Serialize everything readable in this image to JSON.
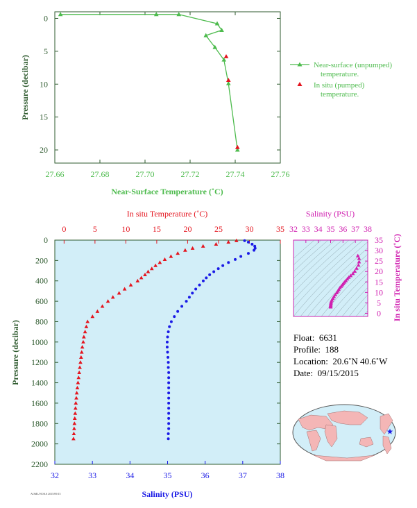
{
  "colors": {
    "green": "#4dbb4d",
    "red": "#e4141e",
    "blue": "#1a1ae6",
    "magenta": "#d020b0",
    "axis_dark": "#2e5a2e",
    "plot_bg": "#d2eef8",
    "land": "#f4b6b6",
    "ocean": "#d2eef8"
  },
  "chart_data": [
    {
      "type": "line",
      "xlabel": "Near-Surface Temperature (˚C)",
      "ylabel": "Pressure (decibar)",
      "xlim": [
        27.66,
        27.76
      ],
      "ylim": [
        22,
        -1
      ],
      "x_ticks": [
        "27.66",
        "27.68",
        "27.70",
        "27.72",
        "27.74",
        "27.76"
      ],
      "y_ticks": [
        "0",
        "5",
        "10",
        "15",
        "20"
      ],
      "legend": [
        {
          "label": "Near-surface (unpumped) temperature.",
          "color": "green",
          "marker": "triangle-line"
        },
        {
          "label": "In situ (pumped) temperature.",
          "color": "red",
          "marker": "triangle"
        }
      ],
      "series": [
        {
          "name": "Near-surface (unpumped) temperature.",
          "x": [
            27.6625,
            27.705,
            27.715,
            27.732,
            27.734,
            27.727,
            27.731,
            27.735,
            27.737,
            27.741
          ],
          "y": [
            -0.6,
            -0.6,
            -0.6,
            0.8,
            1.8,
            2.6,
            4.4,
            6.3,
            9.9,
            20.0
          ]
        },
        {
          "name": "In situ (pumped) temperature.",
          "x": [
            27.736,
            27.737,
            27.741
          ],
          "y": [
            5.8,
            9.4,
            19.6
          ]
        }
      ]
    },
    {
      "type": "scatter",
      "top_xlabel": "In situ Temperature (˚C)",
      "bottom_xlabel": "Salinity (PSU)",
      "ylabel": "Pressure (decibar)",
      "temp_lim": [
        -1.5,
        35
      ],
      "sal_lim": [
        32,
        38
      ],
      "ylim": [
        2200,
        0
      ],
      "temp_ticks": [
        "0",
        "5",
        "10",
        "15",
        "20",
        "25",
        "30",
        "35"
      ],
      "sal_ticks": [
        "32",
        "33",
        "34",
        "35",
        "36",
        "37",
        "38"
      ],
      "y_ticks": [
        "0",
        "200",
        "400",
        "600",
        "800",
        "1000",
        "1200",
        "1400",
        "1600",
        "1800",
        "2000",
        "2200"
      ],
      "series": [
        {
          "name": "In situ Temperature (˚C)",
          "pressure": [
            5,
            20,
            40,
            60,
            80,
            100,
            130,
            160,
            190,
            220,
            250,
            280,
            310,
            340,
            370,
            400,
            440,
            480,
            520,
            560,
            600,
            650,
            700,
            750,
            800,
            850,
            900,
            950,
            1000,
            1050,
            1100,
            1150,
            1200,
            1250,
            1300,
            1350,
            1400,
            1450,
            1500,
            1550,
            1600,
            1650,
            1700,
            1750,
            1800,
            1850,
            1900,
            1950
          ],
          "temp": [
            27.9,
            26.6,
            24.6,
            22.5,
            20.8,
            19.6,
            18.4,
            17.3,
            16.3,
            15.5,
            14.8,
            14.2,
            13.6,
            13.1,
            12.5,
            11.9,
            10.8,
            9.8,
            8.9,
            7.9,
            7.1,
            6.2,
            5.4,
            4.6,
            3.8,
            3.6,
            3.4,
            3.2,
            3.1,
            2.95,
            2.85,
            2.75,
            2.65,
            2.55,
            2.45,
            2.35,
            2.25,
            2.15,
            2.05,
            1.98,
            1.9,
            1.85,
            1.8,
            1.73,
            1.68,
            1.63,
            1.58,
            1.52
          ]
        },
        {
          "name": "Salinity (PSU)",
          "pressure": [
            5,
            20,
            40,
            60,
            80,
            100,
            130,
            160,
            190,
            220,
            250,
            280,
            310,
            340,
            370,
            400,
            440,
            480,
            520,
            560,
            600,
            650,
            700,
            750,
            800,
            850,
            900,
            950,
            1000,
            1050,
            1100,
            1150,
            1200,
            1250,
            1300,
            1350,
            1400,
            1450,
            1500,
            1550,
            1600,
            1650,
            1700,
            1750,
            1800,
            1850,
            1900,
            1950
          ],
          "sal": [
            37.05,
            37.15,
            37.25,
            37.32,
            37.33,
            37.3,
            37.15,
            36.95,
            36.8,
            36.62,
            36.47,
            36.35,
            36.23,
            36.12,
            36.03,
            35.95,
            35.85,
            35.75,
            35.66,
            35.58,
            35.5,
            35.38,
            35.27,
            35.18,
            35.1,
            35.05,
            35.02,
            35.0,
            34.99,
            34.99,
            35.0,
            35.01,
            35.02,
            35.02,
            35.03,
            35.03,
            35.03,
            35.03,
            35.03,
            35.03,
            35.03,
            35.03,
            35.03,
            35.03,
            35.03,
            35.03,
            35.02,
            35.02
          ]
        }
      ]
    },
    {
      "type": "scatter",
      "xlabel": "Salinity (PSU)",
      "ylabel": "In situ Temperature (˚C)",
      "xlim": [
        32,
        38
      ],
      "ylim": [
        -1.5,
        35
      ],
      "x_ticks": [
        "32",
        "33",
        "34",
        "35",
        "36",
        "37",
        "38"
      ],
      "y_ticks": [
        "0",
        "5",
        "10",
        "15",
        "20",
        "25",
        "30",
        "35"
      ],
      "series": [
        {
          "name": "Salinity (PSU)",
          "x": [
            35.0,
            35.0,
            35.0,
            35.01,
            35.02,
            35.03,
            35.05,
            35.1,
            35.18,
            35.27,
            35.38,
            35.5,
            35.58,
            35.66,
            35.75,
            35.85,
            35.95,
            36.03,
            36.12,
            36.23,
            36.35,
            36.47,
            36.62,
            36.8,
            36.95,
            37.1,
            37.25,
            37.3,
            37.3,
            37.2
          ],
          "y": [
            3.0,
            3.3,
            3.6,
            4.0,
            4.5,
            5.0,
            5.6,
            6.3,
            7.1,
            8.0,
            8.9,
            9.8,
            10.6,
            11.4,
            12.2,
            12.9,
            13.6,
            14.2,
            14.9,
            15.6,
            16.4,
            17.2,
            18.0,
            19.0,
            20.1,
            21.5,
            23.0,
            24.6,
            26.2,
            27.5
          ]
        }
      ]
    }
  ],
  "info": {
    "float_label": "Float:",
    "float_value": "6631",
    "profile_label": "Profile:",
    "profile_value": "188",
    "location_label": "Location:",
    "location_value": "20.6˚N  40.6˚W",
    "date_label": "Date:",
    "date_value": "09/15/2015"
  },
  "map": {
    "marker_icon": "star-icon"
  },
  "footer_id": "AOML/NOAA 2015/09/15"
}
